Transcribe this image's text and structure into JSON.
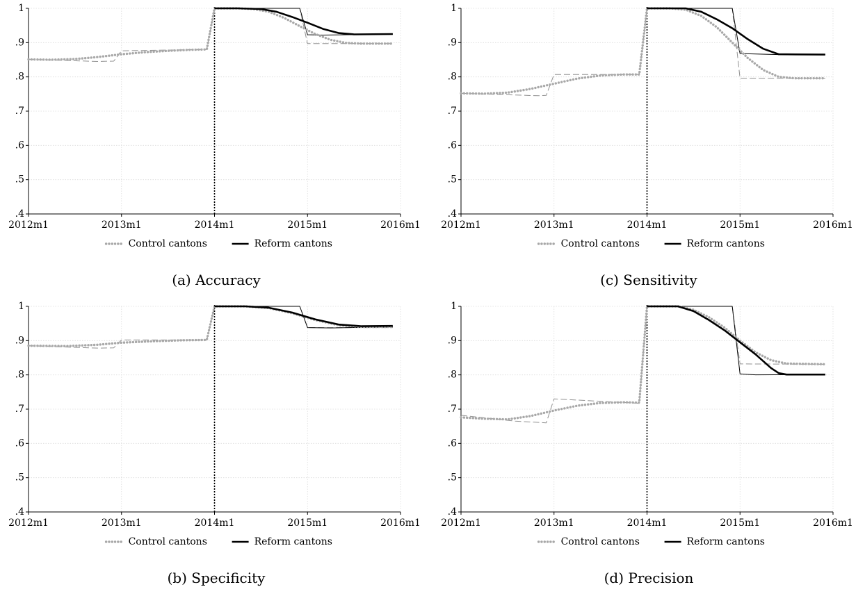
{
  "chart_data": [
    {
      "type": "line",
      "title": "",
      "caption": "(a) Accuracy",
      "xlabel": "",
      "ylabel": "",
      "xlim": [
        "2012m1",
        "2016m1"
      ],
      "ylim": [
        0.4,
        1.0
      ],
      "x_ticks": [
        "2012m1",
        "2013m1",
        "2014m1",
        "2015m1",
        "2016m1"
      ],
      "y_ticks": [
        ".4",
        ".5",
        ".6",
        ".7",
        ".8",
        ".9",
        "1"
      ],
      "grid": true,
      "legend": "bottom",
      "reference_line": "2014m1",
      "colors": {
        "control": "#a8a8a8",
        "reform": "#000000",
        "thin_control": "#909090",
        "thin_reform": "#000000"
      },
      "series": [
        {
          "name": "Control cantons",
          "style": "dotted-thick",
          "points": [
            [
              "2012m1",
              0.851
            ],
            [
              "2012m4",
              0.85
            ],
            [
              "2012m7",
              0.852
            ],
            [
              "2012m10",
              0.858
            ],
            [
              "2013m1",
              0.866
            ],
            [
              "2013m4",
              0.872
            ],
            [
              "2013m7",
              0.876
            ],
            [
              "2013m10",
              0.879
            ],
            [
              "2013m12",
              0.88
            ],
            [
              "2014m1",
              1.0
            ],
            [
              "2014m4",
              1.0
            ],
            [
              "2014m6",
              0.998
            ],
            [
              "2014m8",
              0.99
            ],
            [
              "2014m10",
              0.972
            ],
            [
              "2014m12",
              0.948
            ],
            [
              "2015m2",
              0.925
            ],
            [
              "2015m4",
              0.908
            ],
            [
              "2015m6",
              0.899
            ],
            [
              "2015m8",
              0.897
            ],
            [
              "2015m12",
              0.897
            ]
          ]
        },
        {
          "name": "Reform cantons",
          "style": "solid-thick",
          "points": [
            [
              "2014m1",
              1.0
            ],
            [
              "2014m4",
              1.0
            ],
            [
              "2014m7",
              0.998
            ],
            [
              "2014m9",
              0.99
            ],
            [
              "2014m11",
              0.975
            ],
            [
              "2015m1",
              0.958
            ],
            [
              "2015m3",
              0.94
            ],
            [
              "2015m5",
              0.928
            ],
            [
              "2015m7",
              0.924
            ],
            [
              "2015m12",
              0.925
            ]
          ]
        },
        {
          "name": "",
          "style": "dashed-thin",
          "points": [
            [
              "2012m1",
              0.851
            ],
            [
              "2012m10",
              0.845
            ],
            [
              "2013m0",
              0.846
            ],
            [
              "2013m1",
              0.876
            ],
            [
              "2013m12",
              0.88
            ],
            [
              "2014m1",
              1.0
            ],
            [
              "2014m12",
              1.0
            ],
            [
              "2015m1",
              0.897
            ],
            [
              "2015m12",
              0.897
            ]
          ]
        },
        {
          "name": "",
          "style": "solid-thin",
          "points": [
            [
              "2014m1",
              1.0
            ],
            [
              "2014m12",
              1.0
            ],
            [
              "2015m1",
              0.923
            ],
            [
              "2015m3",
              0.922
            ],
            [
              "2015m12",
              0.925
            ]
          ]
        }
      ]
    },
    {
      "type": "line",
      "title": "",
      "caption": "(b) Specificity",
      "xlabel": "",
      "ylabel": "",
      "xlim": [
        "2012m1",
        "2016m1"
      ],
      "ylim": [
        0.4,
        1.0
      ],
      "x_ticks": [
        "2012m1",
        "2013m1",
        "2014m1",
        "2015m1",
        "2016m1"
      ],
      "y_ticks": [
        ".4",
        ".5",
        ".6",
        ".7",
        ".8",
        ".9",
        "1"
      ],
      "grid": true,
      "legend": "bottom",
      "reference_line": "2014m1",
      "colors": {
        "control": "#a8a8a8",
        "reform": "#000000",
        "thin_control": "#909090",
        "thin_reform": "#000000"
      },
      "series": [
        {
          "name": "Control cantons",
          "style": "dotted-thick",
          "points": [
            [
              "2012m1",
              0.885
            ],
            [
              "2012m6",
              0.884
            ],
            [
              "2012m10",
              0.888
            ],
            [
              "2013m1",
              0.894
            ],
            [
              "2013m5",
              0.898
            ],
            [
              "2013m9",
              0.901
            ],
            [
              "2013m12",
              0.902
            ],
            [
              "2014m1",
              1.0
            ],
            [
              "2014m5",
              1.0
            ],
            [
              "2014m8",
              0.995
            ],
            [
              "2014m11",
              0.98
            ],
            [
              "2015m2",
              0.96
            ],
            [
              "2015m5",
              0.945
            ],
            [
              "2015m8",
              0.94
            ],
            [
              "2015m12",
              0.94
            ]
          ]
        },
        {
          "name": "Reform cantons",
          "style": "solid-thick",
          "points": [
            [
              "2014m1",
              1.0
            ],
            [
              "2014m5",
              1.0
            ],
            [
              "2014m8",
              0.996
            ],
            [
              "2014m11",
              0.982
            ],
            [
              "2015m2",
              0.962
            ],
            [
              "2015m5",
              0.947
            ],
            [
              "2015m8",
              0.942
            ],
            [
              "2015m12",
              0.943
            ]
          ]
        },
        {
          "name": "",
          "style": "dashed-thin",
          "points": [
            [
              "2012m1",
              0.885
            ],
            [
              "2012m10",
              0.878
            ],
            [
              "2013m0",
              0.879
            ],
            [
              "2013m1",
              0.902
            ],
            [
              "2013m12",
              0.902
            ],
            [
              "2014m1",
              1.0
            ],
            [
              "2014m12",
              1.0
            ],
            [
              "2015m1",
              0.938
            ],
            [
              "2015m12",
              0.938
            ]
          ]
        },
        {
          "name": "",
          "style": "solid-thin",
          "points": [
            [
              "2014m1",
              1.0
            ],
            [
              "2014m12",
              1.0
            ],
            [
              "2015m1",
              0.938
            ],
            [
              "2015m4",
              0.937
            ],
            [
              "2015m12",
              0.94
            ]
          ]
        }
      ]
    },
    {
      "type": "line",
      "title": "",
      "caption": "(c) Sensitivity",
      "xlabel": "",
      "ylabel": "",
      "xlim": [
        "2012m1",
        "2016m1"
      ],
      "ylim": [
        0.4,
        1.0
      ],
      "x_ticks": [
        "2012m1",
        "2013m1",
        "2014m1",
        "2015m1",
        "2016m1"
      ],
      "y_ticks": [
        ".4",
        ".5",
        ".6",
        ".7",
        ".8",
        ".9",
        "1"
      ],
      "grid": true,
      "legend": "bottom",
      "reference_line": "2014m1",
      "colors": {
        "control": "#a8a8a8",
        "reform": "#000000",
        "thin_control": "#909090",
        "thin_reform": "#000000"
      },
      "series": [
        {
          "name": "Control cantons",
          "style": "dotted-thick",
          "points": [
            [
              "2012m1",
              0.752
            ],
            [
              "2012m4",
              0.751
            ],
            [
              "2012m7",
              0.754
            ],
            [
              "2012m10",
              0.765
            ],
            [
              "2013m1",
              0.78
            ],
            [
              "2013m4",
              0.795
            ],
            [
              "2013m7",
              0.804
            ],
            [
              "2013m10",
              0.807
            ],
            [
              "2013m12",
              0.807
            ],
            [
              "2014m1",
              1.0
            ],
            [
              "2014m4",
              1.0
            ],
            [
              "2014m6",
              0.996
            ],
            [
              "2014m8",
              0.978
            ],
            [
              "2014m10",
              0.945
            ],
            [
              "2014m12",
              0.9
            ],
            [
              "2015m2",
              0.855
            ],
            [
              "2015m4",
              0.82
            ],
            [
              "2015m6",
              0.8
            ],
            [
              "2015m8",
              0.796
            ],
            [
              "2015m12",
              0.796
            ]
          ]
        },
        {
          "name": "Reform cantons",
          "style": "solid-thick",
          "points": [
            [
              "2014m1",
              1.0
            ],
            [
              "2014m6",
              1.0
            ],
            [
              "2014m8",
              0.99
            ],
            [
              "2014m10",
              0.968
            ],
            [
              "2014m12",
              0.942
            ],
            [
              "2015m2",
              0.91
            ],
            [
              "2015m4",
              0.882
            ],
            [
              "2015m6",
              0.866
            ],
            [
              "2015m12",
              0.865
            ]
          ]
        },
        {
          "name": "",
          "style": "dashed-thin",
          "points": [
            [
              "2012m1",
              0.752
            ],
            [
              "2012m11",
              0.745
            ],
            [
              "2013m0",
              0.746
            ],
            [
              "2013m1",
              0.807
            ],
            [
              "2013m12",
              0.807
            ],
            [
              "2014m1",
              1.0
            ],
            [
              "2014m12",
              1.0
            ],
            [
              "2015m1",
              0.796
            ],
            [
              "2015m12",
              0.796
            ]
          ]
        },
        {
          "name": "",
          "style": "solid-thin",
          "points": [
            [
              "2014m1",
              1.0
            ],
            [
              "2014m12",
              1.0
            ],
            [
              "2015m1",
              0.868
            ],
            [
              "2015m6",
              0.865
            ],
            [
              "2015m12",
              0.865
            ]
          ]
        }
      ]
    },
    {
      "type": "line",
      "title": "",
      "caption": "(d) Precision",
      "xlabel": "",
      "ylabel": "",
      "xlim": [
        "2012m1",
        "2016m1"
      ],
      "ylim": [
        0.4,
        1.0
      ],
      "x_ticks": [
        "2012m1",
        "2013m1",
        "2014m1",
        "2015m1",
        "2016m1"
      ],
      "y_ticks": [
        ".4",
        ".5",
        ".6",
        ".7",
        ".8",
        ".9",
        "1"
      ],
      "grid": true,
      "legend": "bottom",
      "reference_line": "2014m1",
      "colors": {
        "control": "#a8a8a8",
        "reform": "#000000",
        "thin_control": "#909090",
        "thin_reform": "#000000"
      },
      "series": [
        {
          "name": "Control cantons",
          "style": "dotted-thick",
          "points": [
            [
              "2012m1",
              0.676
            ],
            [
              "2012m4",
              0.672
            ],
            [
              "2012m7",
              0.67
            ],
            [
              "2012m10",
              0.68
            ],
            [
              "2013m1",
              0.696
            ],
            [
              "2013m4",
              0.71
            ],
            [
              "2013m7",
              0.718
            ],
            [
              "2013m10",
              0.72
            ],
            [
              "2013m12",
              0.719
            ],
            [
              "2014m1",
              1.0
            ],
            [
              "2014m5",
              1.0
            ],
            [
              "2014m7",
              0.99
            ],
            [
              "2014m9",
              0.968
            ],
            [
              "2014m11",
              0.938
            ],
            [
              "2015m1",
              0.9
            ],
            [
              "2015m3",
              0.866
            ],
            [
              "2015m5",
              0.843
            ],
            [
              "2015m7",
              0.833
            ],
            [
              "2015m12",
              0.831
            ]
          ]
        },
        {
          "name": "Reform cantons",
          "style": "solid-thick",
          "points": [
            [
              "2014m1",
              1.0
            ],
            [
              "2014m5",
              1.0
            ],
            [
              "2014m7",
              0.986
            ],
            [
              "2014m9",
              0.96
            ],
            [
              "2014m11",
              0.93
            ],
            [
              "2015m1",
              0.895
            ],
            [
              "2015m3",
              0.86
            ],
            [
              "2015m5",
              0.82
            ],
            [
              "2015m6",
              0.805
            ],
            [
              "2015m7",
              0.801
            ],
            [
              "2015m12",
              0.801
            ]
          ]
        },
        {
          "name": "",
          "style": "dashed-thin",
          "points": [
            [
              "2012m1",
              0.682
            ],
            [
              "2012m8",
              0.665
            ],
            [
              "2012m12",
              0.66
            ],
            [
              "2013m1",
              0.73
            ],
            [
              "2013m12",
              0.717
            ],
            [
              "2014m1",
              1.0
            ],
            [
              "2014m12",
              1.0
            ],
            [
              "2015m1",
              0.832
            ],
            [
              "2015m12",
              0.831
            ]
          ]
        },
        {
          "name": "",
          "style": "solid-thin",
          "points": [
            [
              "2014m1",
              1.0
            ],
            [
              "2014m12",
              1.0
            ],
            [
              "2015m1",
              0.803
            ],
            [
              "2015m3",
              0.8
            ],
            [
              "2015m12",
              0.801
            ]
          ]
        }
      ]
    }
  ]
}
